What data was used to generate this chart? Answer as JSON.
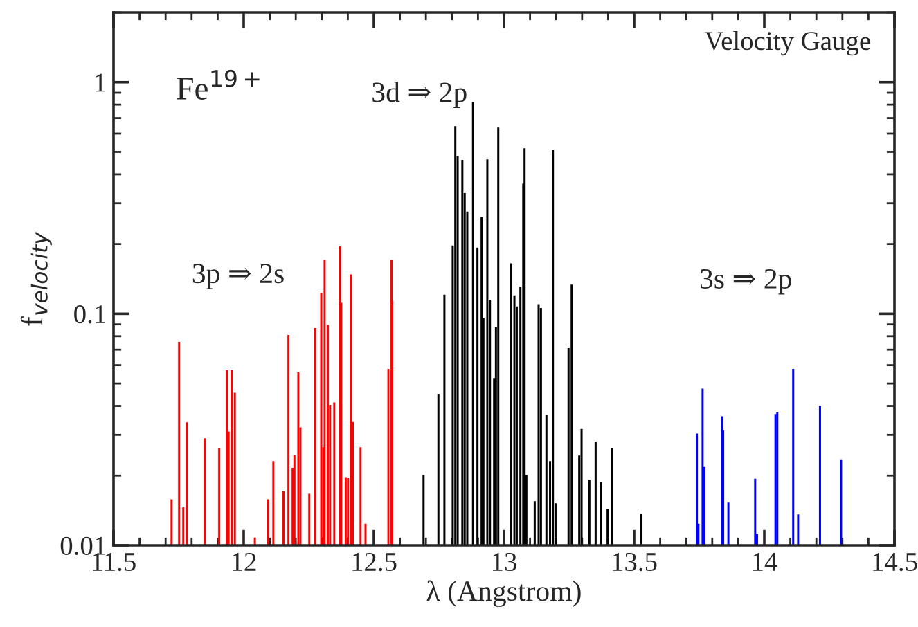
{
  "chart_data": {
    "type": "bar",
    "xlabel": "λ (Angstrom)",
    "ylabel": "f$_{velocity}$",
    "log": true,
    "grid": false,
    "legend": false,
    "xlim": [
      11.5,
      14.5
    ],
    "xticks": [
      11.5,
      12,
      12.5,
      13,
      13.5,
      14,
      14.5
    ],
    "ylim": [
      0.01,
      2
    ],
    "yticks": [
      0.01,
      0.1,
      1
    ],
    "annotations": [
      "Fe$^{19+}$",
      "3p ⇒ 2s",
      "3d ⇒ 2p",
      "3s ⇒ 2p",
      "Velocity Gauge"
    ],
    "series": [
      {
        "color": "#ff0000",
        "x": [
          11.723,
          11.752,
          11.768,
          11.782,
          11.851,
          11.906,
          11.936,
          11.942,
          11.954,
          11.966,
          12.043,
          12.094,
          12.114,
          12.153,
          12.172,
          12.188,
          12.195,
          12.21,
          12.218,
          12.252,
          12.275,
          12.298,
          12.306,
          12.311,
          12.323,
          12.332,
          12.348,
          12.371,
          12.375,
          12.392,
          12.401,
          12.412,
          12.419,
          12.449,
          12.468,
          12.556,
          12.568,
          12.571
        ],
        "values": [
          0.0158,
          0.0756,
          0.0146,
          0.034,
          0.029,
          0.0262,
          0.057,
          0.031,
          0.057,
          0.0456,
          0.0108,
          0.0158,
          0.0231,
          0.0171,
          0.081,
          0.0216,
          0.0245,
          0.056,
          0.0323,
          0.0167,
          0.0867,
          0.123,
          0.0265,
          0.1706,
          0.0896,
          0.0404,
          0.0414,
          0.1955,
          0.1116,
          0.0197,
          0.0195,
          0.148,
          0.0341,
          0.0265,
          0.0124,
          0.0578,
          0.1706,
          0.1137
        ]
      },
      {
        "color": "#000000",
        "x": [
          12.691,
          12.748,
          12.771,
          12.803,
          12.813,
          12.822,
          12.84,
          12.849,
          12.859,
          12.881,
          12.898,
          12.914,
          12.921,
          12.936,
          12.946,
          12.962,
          12.969,
          12.978,
          13.028,
          13.04,
          13.049,
          13.063,
          13.074,
          13.079,
          13.086,
          13.118,
          13.133,
          13.142,
          13.163,
          13.177,
          13.188,
          13.198,
          13.248,
          13.26,
          13.289,
          13.298,
          13.328,
          13.352,
          13.372,
          13.398,
          13.415,
          13.528
        ],
        "values": [
          0.0201,
          0.045,
          0.121,
          0.197,
          0.646,
          0.48,
          0.462,
          0.332,
          0.276,
          0.821,
          0.193,
          0.261,
          0.096,
          0.464,
          0.115,
          0.0528,
          0.0875,
          0.637,
          0.165,
          0.12,
          0.1076,
          0.131,
          0.364,
          0.518,
          0.0201,
          0.0155,
          0.11,
          0.106,
          0.0365,
          0.0231,
          0.509,
          0.0152,
          0.0711,
          0.1336,
          0.0244,
          0.0318,
          0.0192,
          0.028,
          0.0188,
          0.0143,
          0.0262,
          0.0137
        ]
      },
      {
        "color": "#0000ff",
        "x": [
          13.741,
          13.747,
          13.763,
          13.77,
          13.839,
          13.842,
          13.862,
          13.965,
          13.972,
          14.043,
          14.05,
          14.111,
          14.13,
          14.214,
          14.295
        ],
        "values": [
          0.0304,
          0.0124,
          0.0475,
          0.0218,
          0.0361,
          0.0314,
          0.0153,
          0.0194,
          0.0112,
          0.0369,
          0.0375,
          0.0578,
          0.0136,
          0.0401,
          0.0235
        ]
      }
    ]
  }
}
